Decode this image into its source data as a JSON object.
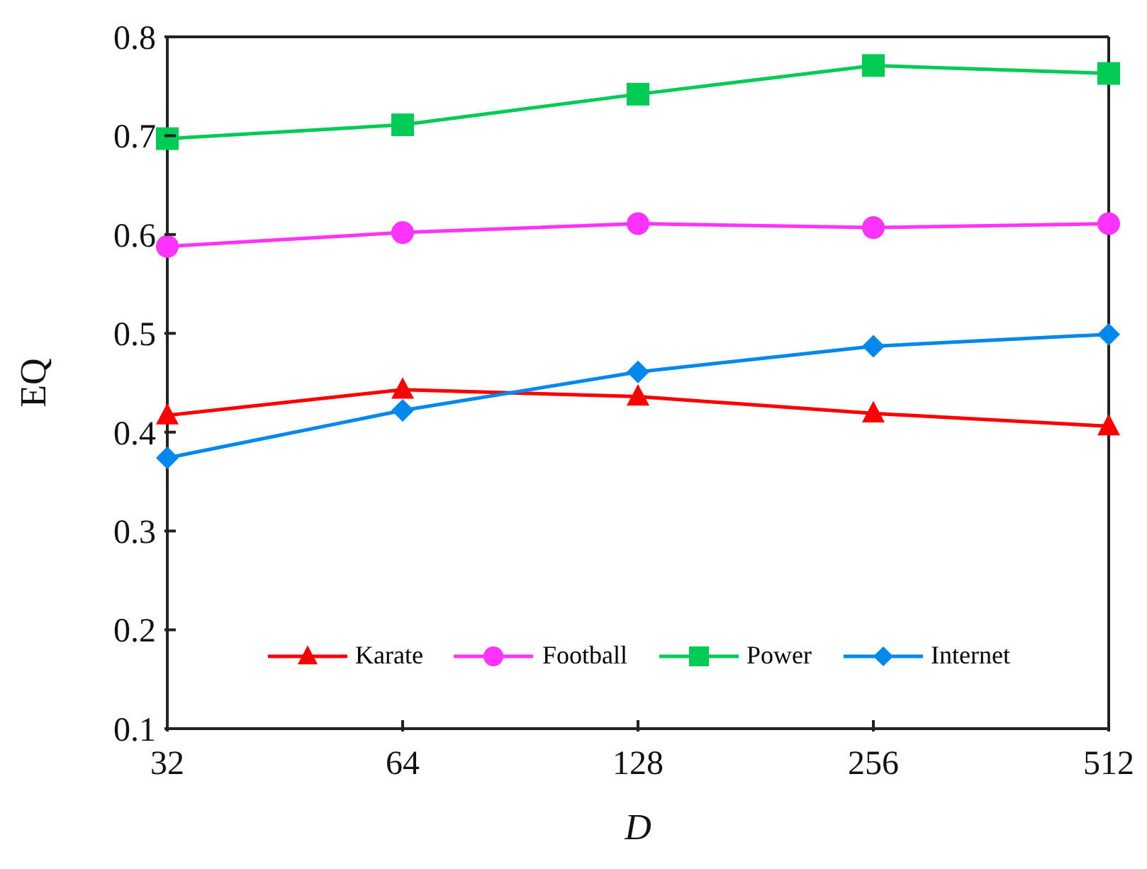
{
  "chart_data": {
    "type": "line",
    "xlabel": "D",
    "ylabel": "EQ",
    "categories": [
      "32",
      "64",
      "128",
      "256",
      "512"
    ],
    "ylim": [
      0.1,
      0.8
    ],
    "yticks": [
      0.1,
      0.2,
      0.3,
      0.4,
      0.5,
      0.6,
      0.7,
      0.8
    ],
    "grid": false,
    "legend": "bottom",
    "line_style": "solid",
    "series": [
      {
        "name": "Karate",
        "color": "#ff0000",
        "marker": "triangle",
        "values": [
          0.417,
          0.443,
          0.436,
          0.419,
          0.406
        ]
      },
      {
        "name": "Football",
        "color": "#ff33ff",
        "marker": "circle",
        "values": [
          0.588,
          0.602,
          0.611,
          0.607,
          0.611
        ]
      },
      {
        "name": "Power",
        "color": "#00cc55",
        "marker": "square",
        "values": [
          0.697,
          0.711,
          0.742,
          0.771,
          0.763
        ]
      },
      {
        "name": "Internet",
        "color": "#0088ee",
        "marker": "diamond",
        "values": [
          0.374,
          0.422,
          0.461,
          0.487,
          0.499
        ]
      }
    ]
  }
}
